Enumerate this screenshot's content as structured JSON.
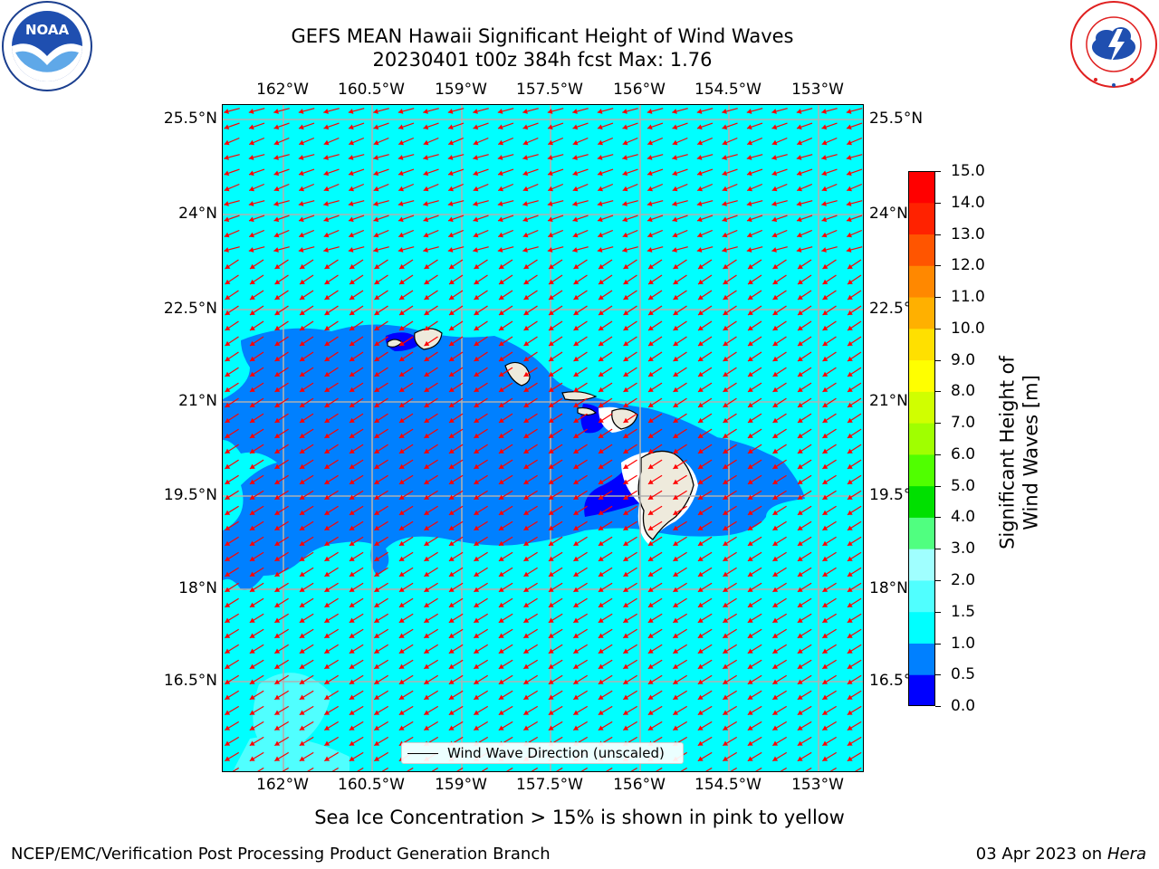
{
  "header": {
    "title_line1": "GEFS MEAN Hawaii Significant Height of Wind Waves",
    "title_line2": "20230401 t00z 384h fcst   Max: 1.76"
  },
  "logos": {
    "noaa_text": "NOAA",
    "noaa_ring_text": "NATIONAL OCEANIC AND ATMOSPHERIC ADMINISTRATION · U.S. DEPARTMENT OF COMMERCE",
    "nws_ring_text": "NATIONAL WEATHER SERVICE"
  },
  "map": {
    "lon_labels": [
      "162°W",
      "160.5°W",
      "159°W",
      "157.5°W",
      "156°W",
      "154.5°W",
      "153°W"
    ],
    "lat_labels": [
      "25.5°N",
      "24°N",
      "22.5°N",
      "21°N",
      "19.5°N",
      "18°N",
      "16.5°N"
    ],
    "legend_label": "Wind Wave Direction (unscaled)",
    "arrow_color": "#ff0000",
    "land_color": "#eeeadc",
    "grid_color": "#b0b0b0"
  },
  "colorbar": {
    "title": "Significant Height of Wind Waves [m]",
    "ticks": [
      "0.0",
      "0.5",
      "1.0",
      "1.5",
      "2.0",
      "3.0",
      "4.0",
      "5.0",
      "6.0",
      "7.0",
      "8.0",
      "9.0",
      "10.0",
      "11.0",
      "12.0",
      "13.0",
      "14.0",
      "15.0"
    ],
    "colors": [
      "#0000ff",
      "#0080ff",
      "#00ffff",
      "#50ffff",
      "#a0ffff",
      "#50ff80",
      "#00e000",
      "#50ff00",
      "#a0ff00",
      "#d0ff00",
      "#ffff00",
      "#ffe000",
      "#ffb000",
      "#ff8800",
      "#ff5500",
      "#ff2200",
      "#ff0000"
    ]
  },
  "footer": {
    "sea_ice_note": "Sea Ice Concentration > 15% is shown in pink to yellow",
    "org": "NCEP/EMC/Verification Post Processing Product Generation Branch",
    "date": "03 Apr 2023 on ",
    "machine": "Hera"
  }
}
